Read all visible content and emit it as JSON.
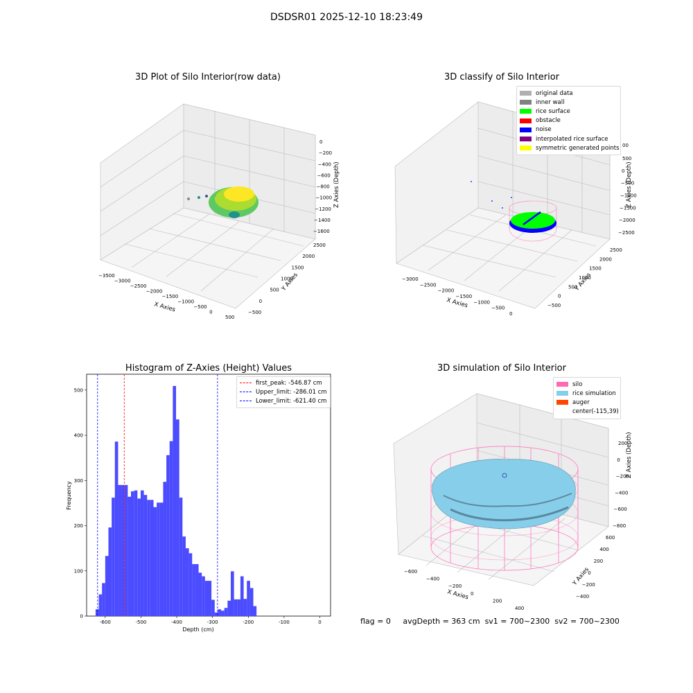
{
  "suptitle": "DSDSR01 2025-12-10 18:23:49",
  "chart_data": [
    {
      "type": "scatter",
      "subtype": "3d",
      "title": "3D Plot of Silo Interior(row data)",
      "xlabel": "X Axies",
      "ylabel": "Y Axies",
      "zlabel": "Z Axies (Depth)",
      "xticks": [
        "−3500",
        "−3000",
        "−2500",
        "−2000",
        "−1500",
        "−1000",
        "−500",
        "0",
        "500"
      ],
      "yticks": [
        "−500",
        "0",
        "500",
        "1000",
        "1500",
        "2000",
        "2500"
      ],
      "zticks": [
        "0",
        "−200",
        "−400",
        "−600",
        "−800",
        "−1000",
        "−1200",
        "−1400",
        "−1600"
      ],
      "colormap": "viridis"
    },
    {
      "type": "scatter",
      "subtype": "3d",
      "title": "3D classify of Silo Interior",
      "xlabel": "X Axies",
      "ylabel": "Y Axies",
      "zlabel": "Z Axies (Depth)",
      "xticks": [
        "−3000",
        "−2500",
        "−2000",
        "−1500",
        "−1000",
        "−500",
        "0"
      ],
      "yticks": [
        "−500",
        "0",
        "500",
        "1000",
        "1500",
        "2000",
        "2500"
      ],
      "zticks": [
        "500",
        "0",
        "−500",
        "−1000",
        "−1500",
        "−2000",
        "−2500"
      ],
      "z_top_tick": "00",
      "legend_position": "top-right",
      "legend": [
        {
          "label": "original data",
          "color": "#b0b0b0"
        },
        {
          "label": "inner wall",
          "color": "#808080"
        },
        {
          "label": "rice surface",
          "color": "#00ff00"
        },
        {
          "label": "obstacle",
          "color": "#ff0000"
        },
        {
          "label": "noise",
          "color": "#0000ff"
        },
        {
          "label": "interpolated rice surface",
          "color": "#800080"
        },
        {
          "label": "symmetric generated points",
          "color": "#ffff00"
        }
      ]
    },
    {
      "type": "bar",
      "subtype": "histogram",
      "title": "Histogram of Z-Axies (Height) Values",
      "xlabel": "Depth (cm)",
      "ylabel": "Frequency",
      "xlim": [
        -652,
        30
      ],
      "ylim": [
        0,
        535
      ],
      "xticks": [
        -600,
        -500,
        -400,
        -300,
        -200,
        -100,
        0
      ],
      "yticks": [
        0,
        100,
        200,
        300,
        400,
        500
      ],
      "bar_color": "#4b4bff",
      "bins": [
        [
          -627,
          -618,
          15
        ],
        [
          -618,
          -609,
          48
        ],
        [
          -609,
          -600,
          73
        ],
        [
          -600,
          -591,
          133
        ],
        [
          -591,
          -582,
          196
        ],
        [
          -582,
          -573,
          262
        ],
        [
          -573,
          -564,
          386
        ],
        [
          -564,
          -555,
          290
        ],
        [
          -555,
          -546,
          290
        ],
        [
          -546,
          -537,
          290
        ],
        [
          -537,
          -528,
          264
        ],
        [
          -528,
          -519,
          276
        ],
        [
          -519,
          -510,
          278
        ],
        [
          -510,
          -501,
          260
        ],
        [
          -501,
          -492,
          278
        ],
        [
          -492,
          -483,
          268
        ],
        [
          -483,
          -474,
          257
        ],
        [
          -474,
          -465,
          257
        ],
        [
          -465,
          -456,
          241
        ],
        [
          -456,
          -447,
          251
        ],
        [
          -447,
          -438,
          251
        ],
        [
          -438,
          -429,
          297
        ],
        [
          -429,
          -420,
          356
        ],
        [
          -420,
          -411,
          387
        ],
        [
          -411,
          -402,
          509
        ],
        [
          -402,
          -393,
          435
        ],
        [
          -393,
          -384,
          262
        ],
        [
          -384,
          -375,
          176
        ],
        [
          -375,
          -366,
          150
        ],
        [
          -366,
          -357,
          139
        ],
        [
          -357,
          -348,
          115
        ],
        [
          -348,
          -339,
          115
        ],
        [
          -339,
          -330,
          96
        ],
        [
          -330,
          -321,
          88
        ],
        [
          -321,
          -312,
          78
        ],
        [
          -312,
          -303,
          78
        ],
        [
          -303,
          -294,
          36
        ],
        [
          -294,
          -285,
          8
        ],
        [
          -285,
          -276,
          15
        ],
        [
          -276,
          -267,
          12
        ],
        [
          -267,
          -258,
          18
        ],
        [
          -258,
          -249,
          34
        ],
        [
          -249,
          -240,
          99
        ],
        [
          -240,
          -231,
          37
        ],
        [
          -231,
          -222,
          37
        ],
        [
          -222,
          -213,
          88
        ],
        [
          -213,
          -204,
          38
        ],
        [
          -204,
          -195,
          78
        ],
        [
          -195,
          -186,
          62
        ],
        [
          -186,
          -177,
          22
        ]
      ],
      "vlines": [
        {
          "label": "first_peak: -546.87 cm",
          "x": -546.87,
          "color": "#ff0000"
        },
        {
          "label": "Upper_limit: -286.01 cm",
          "x": -286.01,
          "color": "#0000ff"
        },
        {
          "label": "Lower_limit: -621.40 cm",
          "x": -621.4,
          "color": "#0000ff"
        }
      ],
      "legend_position": "top-right"
    },
    {
      "type": "scatter",
      "subtype": "3d-surface",
      "title": "3D simulation of Silo Interior",
      "xlabel": "X Axies",
      "ylabel": "Y Axies",
      "zlabel": "Z Axies (Depth)",
      "xticks": [
        "−600",
        "−400",
        "−200",
        "0",
        "200",
        "400"
      ],
      "yticks": [
        "−400",
        "−200",
        "0",
        "200",
        "400",
        "600"
      ],
      "zticks": [
        "200",
        "0",
        "−200",
        "−400",
        "−600",
        "−800"
      ],
      "legend_position": "top-right",
      "legend": [
        {
          "label": "silo",
          "color": "#ff69b4"
        },
        {
          "label": "rice simulation",
          "color": "#87ceeb"
        },
        {
          "label": "auger",
          "color": "#ff4500"
        },
        {
          "label": "center(-115,39)",
          "color": ""
        }
      ]
    }
  ],
  "footer": {
    "flag": "flag = 0",
    "avg": "avgDepth = 363 cm",
    "sv1": "sv1 = 700~2300",
    "sv2": "sv2 = 700~2300"
  }
}
